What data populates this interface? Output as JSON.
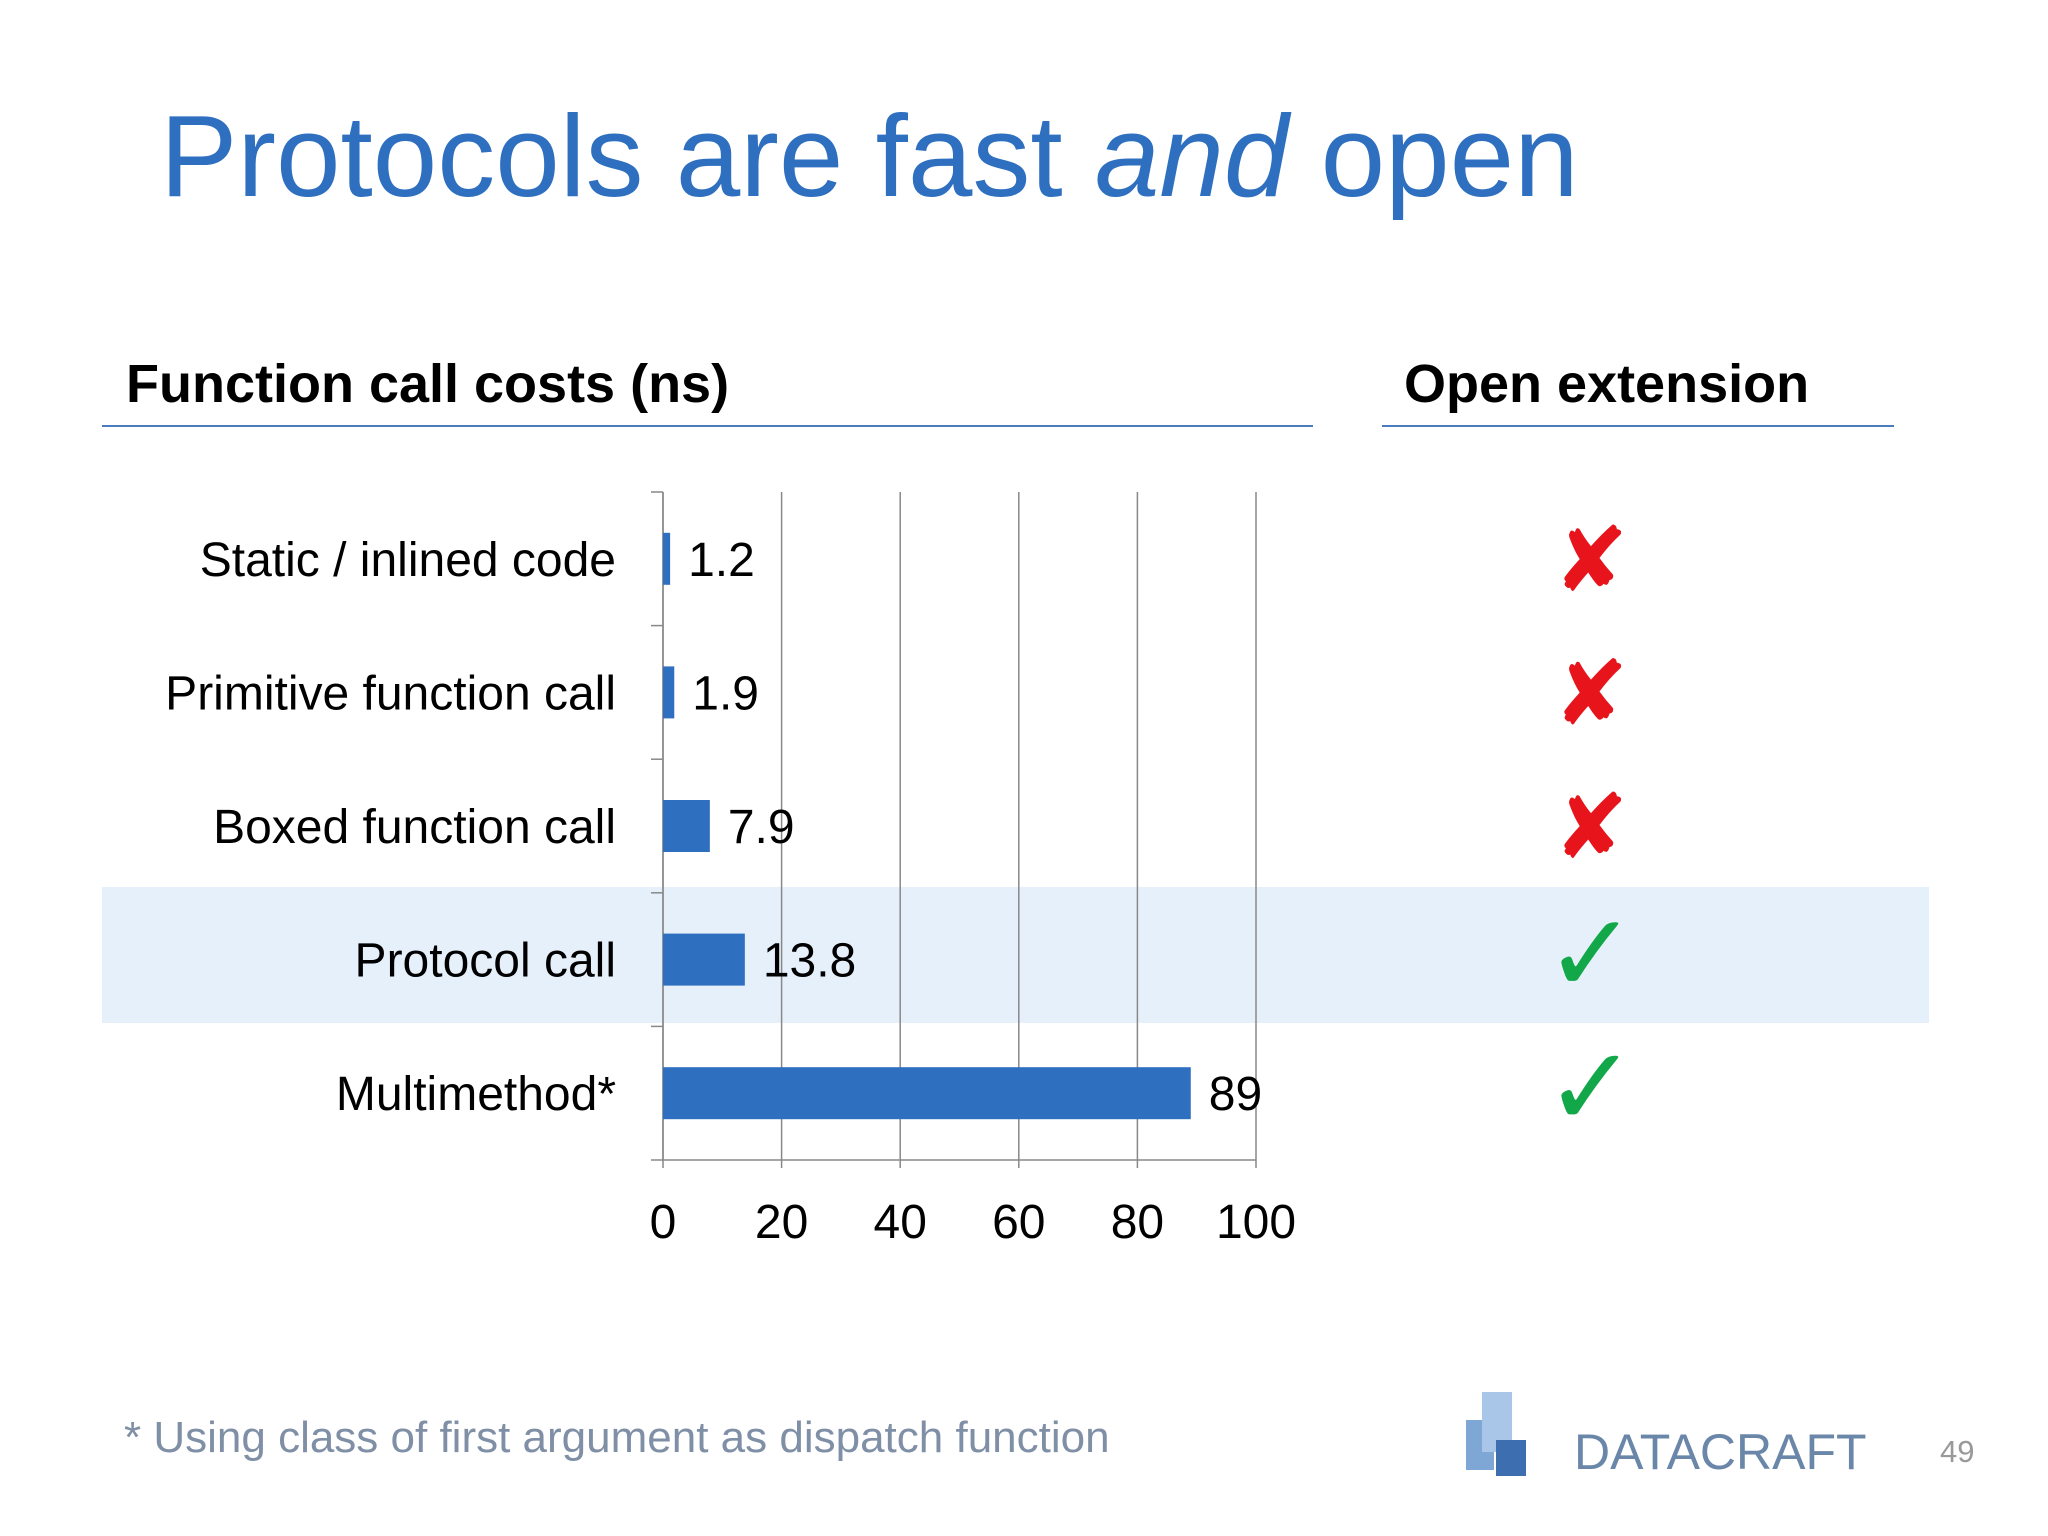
{
  "title": {
    "before": "Protocols are fast",
    "emphasis": "and",
    "after": "open"
  },
  "chart_data": {
    "type": "bar",
    "orientation": "horizontal",
    "title": "Function call costs (ns)",
    "categories": [
      "Static / inlined code",
      "Primitive function call",
      "Boxed function call",
      "Protocol call",
      "Multimethod*"
    ],
    "values": [
      1.2,
      1.9,
      7.9,
      13.8,
      89
    ],
    "color": "#2e6fc0",
    "xlim": [
      0,
      100
    ],
    "xticks": [
      0,
      20,
      40,
      60,
      80,
      100
    ],
    "grid": true
  },
  "open_extension": {
    "title": "Open extension",
    "marks": [
      "✘",
      "✘",
      "✘",
      "✓",
      "✓"
    ]
  },
  "footnote": "* Using class of first argument as dispatch function",
  "logo": "DATACRAFT",
  "page_number": "49"
}
